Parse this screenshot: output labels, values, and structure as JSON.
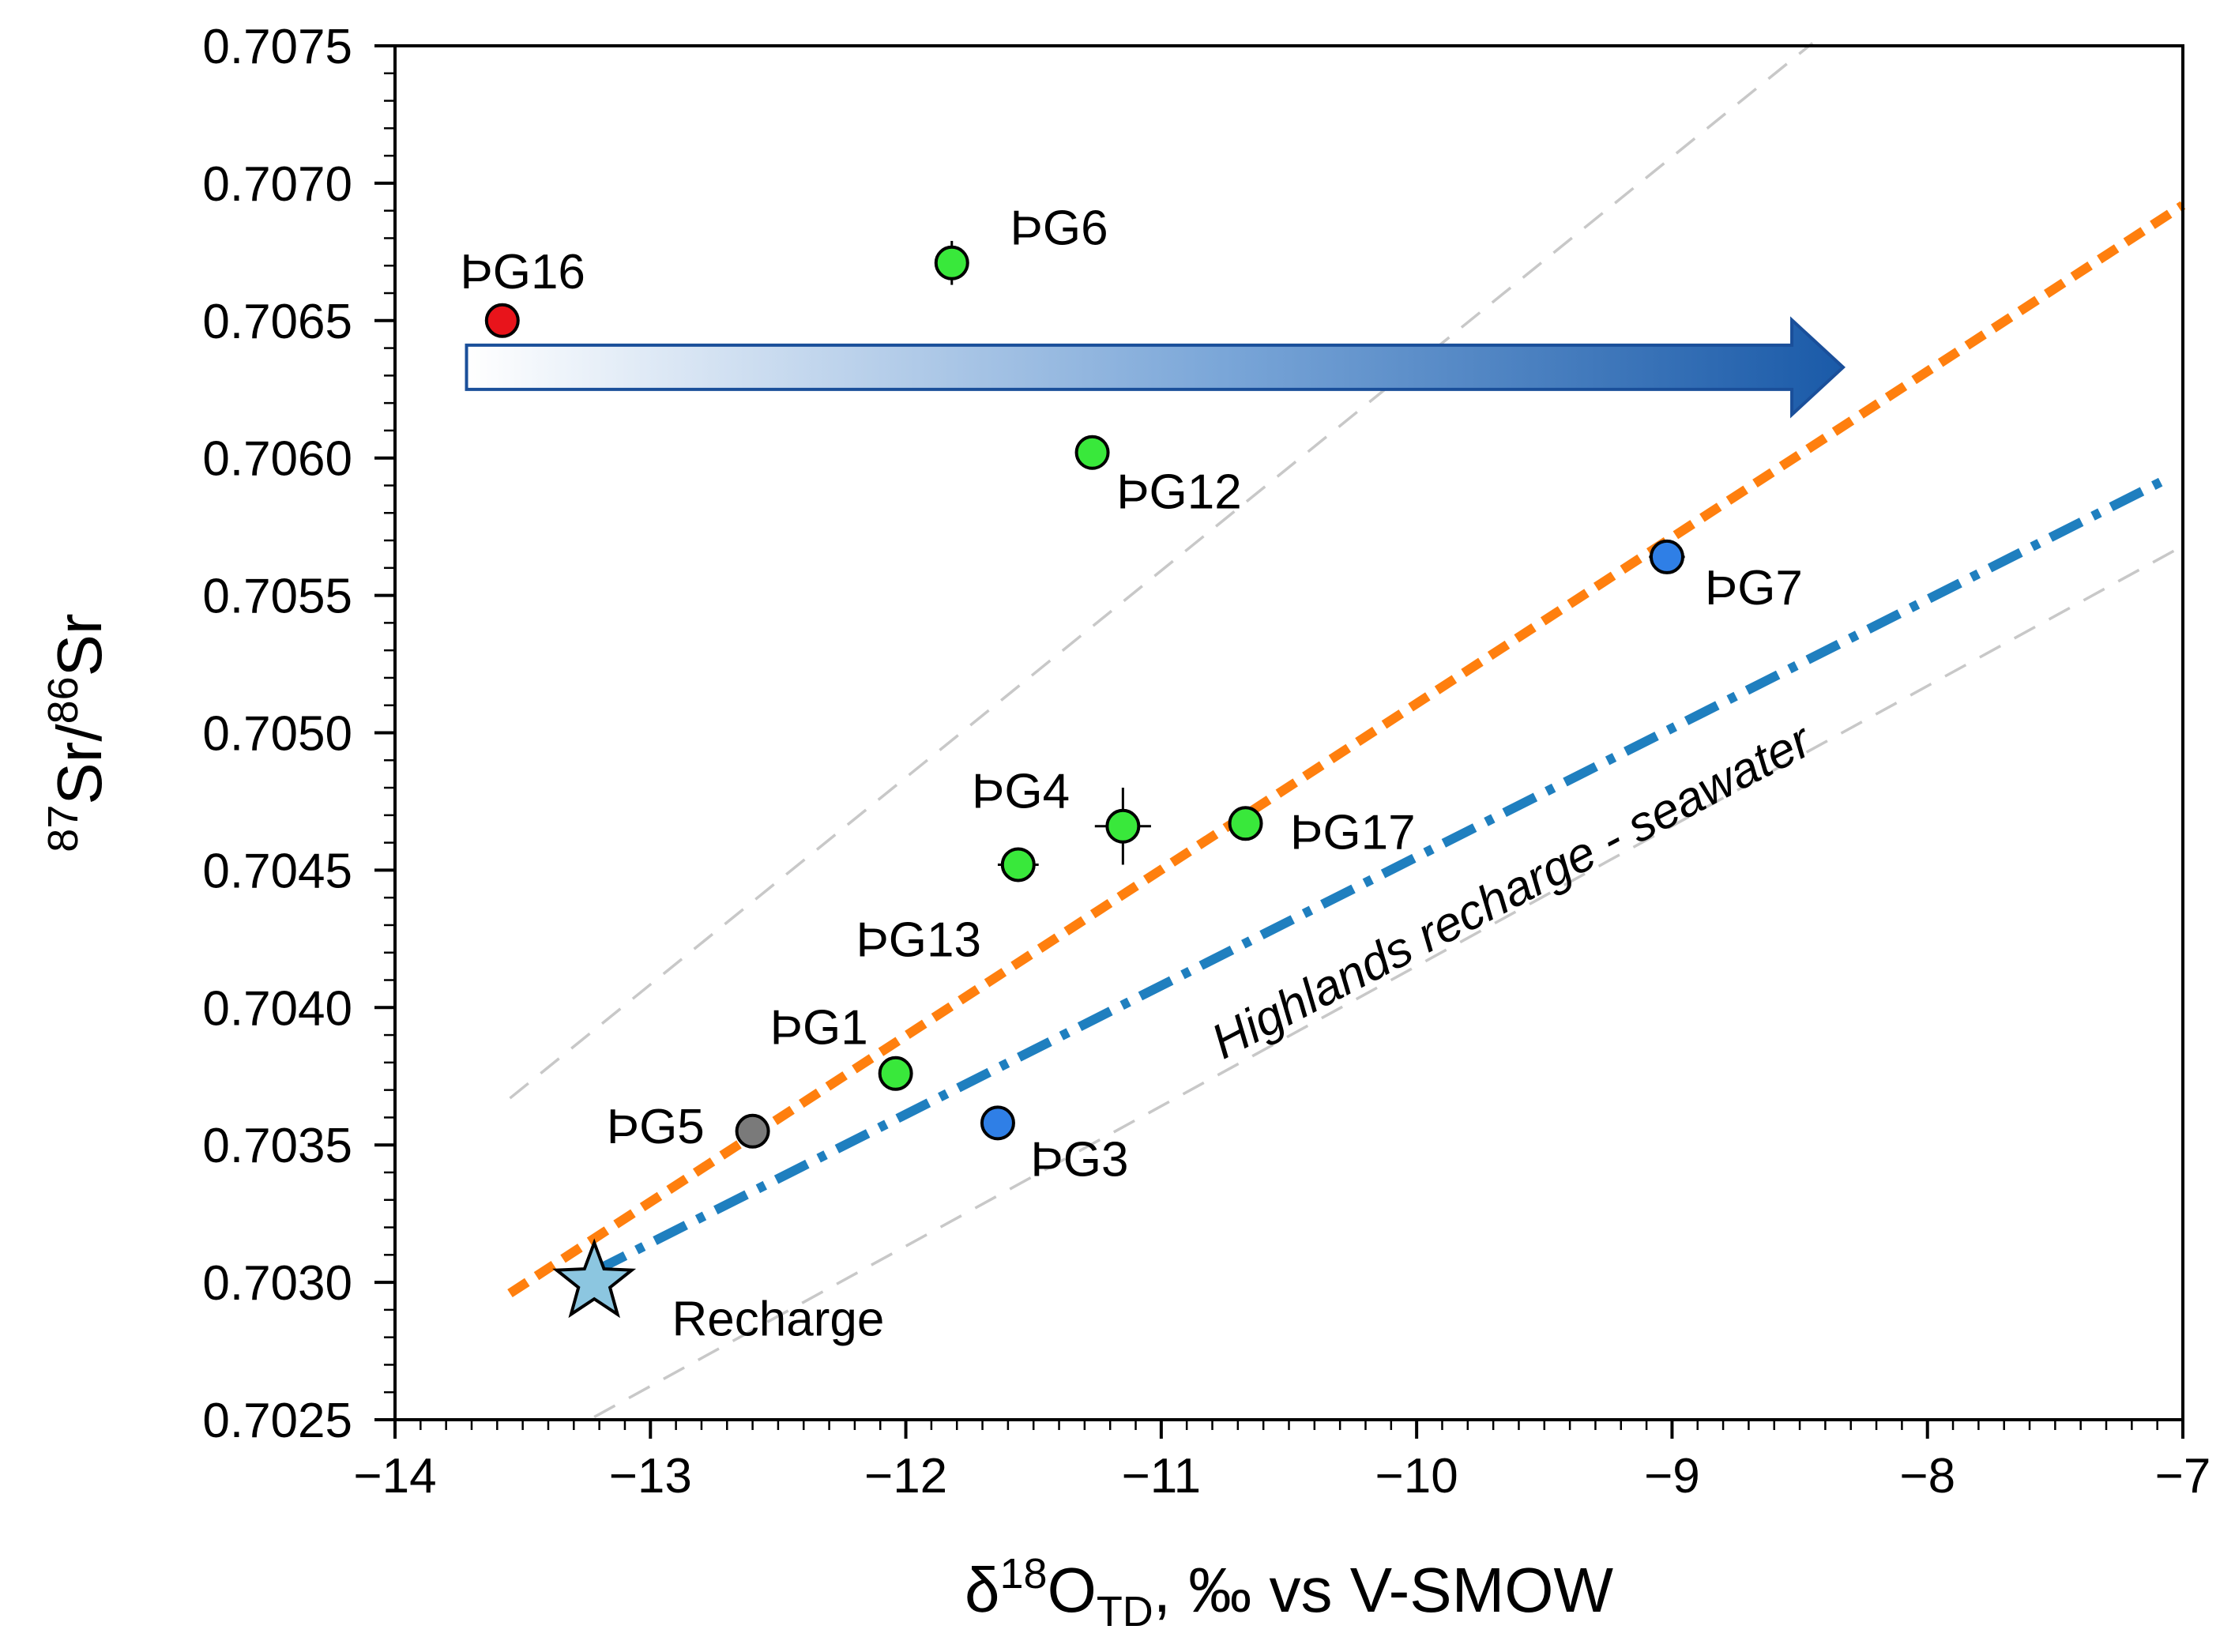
{
  "chart_data": {
    "type": "scatter",
    "xlabel": {
      "pre": "δ",
      "sup": "18",
      "mid": "O",
      "sub": "TD",
      "post": ", ‰ vs V-SMOW"
    },
    "ylabel": {
      "sup1": "87",
      "mid": "Sr/",
      "sup2": "86",
      "post": "Sr"
    },
    "xlim": [
      -14,
      -7
    ],
    "ylim": [
      0.7025,
      0.7075
    ],
    "xticks": [
      -14,
      -13,
      -12,
      -11,
      -10,
      -9,
      -8,
      -7
    ],
    "xtick_labels": [
      "−14",
      "−13",
      "−12",
      "−11",
      "−10",
      "−9",
      "−8",
      "−7"
    ],
    "yticks": [
      0.7025,
      0.703,
      0.7035,
      0.704,
      0.7045,
      0.705,
      0.7055,
      0.706,
      0.7065,
      0.707,
      0.7075
    ],
    "ytick_labels": [
      "0.7025",
      "0.7030",
      "0.7035",
      "0.7040",
      "0.7045",
      "0.7050",
      "0.7055",
      "0.7060",
      "0.7065",
      "0.7070",
      "0.7075"
    ],
    "points": [
      {
        "label": "ÞG16",
        "x": -13.58,
        "y": 0.7065,
        "color": "#e8141b",
        "lx": -13.5,
        "ly": 0.70668,
        "anchor": "middle"
      },
      {
        "label": "ÞG6",
        "x": -11.82,
        "y": 0.70671,
        "color": "#39e83b",
        "lx": -11.4,
        "ly": 0.70684,
        "anchor": "middle",
        "err_y": 8e-05
      },
      {
        "label": "ÞG12",
        "x": -11.27,
        "y": 0.70602,
        "color": "#39e83b",
        "lx": -10.93,
        "ly": 0.70588,
        "anchor": "middle"
      },
      {
        "label": "ÞG7",
        "x": -9.02,
        "y": 0.70564,
        "color": "#2f7fe6",
        "lx": -8.68,
        "ly": 0.70553,
        "anchor": "middle",
        "err_x": 0.07
      },
      {
        "label": "ÞG4",
        "x": -11.15,
        "y": 0.70466,
        "color": "#39e83b",
        "lx": -11.55,
        "ly": 0.70479,
        "anchor": "middle",
        "err_x": 0.11,
        "err_y": 0.00014
      },
      {
        "label": "ÞG17",
        "x": -10.67,
        "y": 0.70467,
        "color": "#39e83b",
        "lx": -10.25,
        "ly": 0.70464,
        "anchor": "middle"
      },
      {
        "label": "ÞG13",
        "x": -11.56,
        "y": 0.70452,
        "color": "#39e83b",
        "lx": -11.95,
        "ly": 0.70425,
        "anchor": "middle",
        "err_x": 0.08,
        "err_y": 6e-05
      },
      {
        "label": "ÞG1",
        "x": -12.04,
        "y": 0.70376,
        "color": "#39e83b",
        "lx": -12.34,
        "ly": 0.70393,
        "anchor": "middle"
      },
      {
        "label": "ÞG5",
        "x": -12.6,
        "y": 0.70355,
        "color": "#7a7a7a",
        "lx": -12.98,
        "ly": 0.70357,
        "anchor": "middle"
      },
      {
        "label": "ÞG3",
        "x": -11.64,
        "y": 0.70358,
        "color": "#2f7fe6",
        "lx": -11.32,
        "ly": 0.70345,
        "anchor": "middle",
        "err_x": 0.06
      }
    ],
    "recharge": {
      "label": "Recharge",
      "x": -13.22,
      "y": 0.703,
      "color": "#8cc6e0",
      "lx": -12.5,
      "ly": 0.70287
    },
    "lines": [
      {
        "name": "orange-regression",
        "color": "#ff7f0e",
        "style": "dashed",
        "from": [
          -13.55,
          0.70296
        ],
        "to": [
          -7.0,
          0.70692
        ]
      },
      {
        "name": "highlands-recharge-seawater",
        "label": "Highlands recharge - seawater",
        "color": "#1f7fbf",
        "style": "dashdot",
        "from": [
          -13.22,
          0.70304
        ],
        "to": [
          -7.05,
          0.70593
        ]
      },
      {
        "name": "confidence-upper",
        "color": "#c8c8c8",
        "style": "thin-dashed",
        "from": [
          -13.55,
          0.70367
        ],
        "to": [
          -8.45,
          0.70751
        ]
      },
      {
        "name": "confidence-lower",
        "color": "#c8c8c8",
        "style": "thin-dashed",
        "from": [
          -13.22,
          0.70251
        ],
        "to": [
          -7.0,
          0.70568
        ]
      }
    ],
    "arrow": {
      "from": [
        -13.72,
        0.70633
      ],
      "to": [
        -8.33,
        0.70633
      ],
      "gradient_start": "#ffffff",
      "gradient_mid": "#7aa6d8",
      "gradient_end": "#1a5aa8",
      "outline": "#1a4f9a"
    },
    "line_label_angle": -27.5,
    "line_label_pos": [
      -9.6,
      0.70437
    ]
  }
}
